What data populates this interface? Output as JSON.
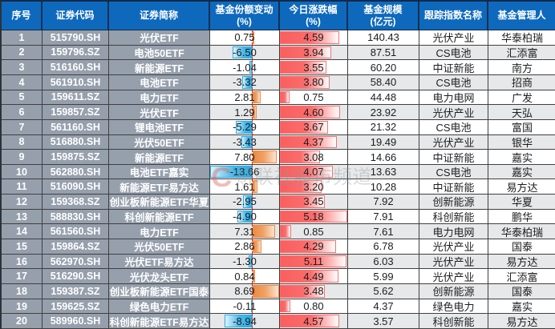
{
  "table_title": "",
  "chart_data": {
    "type": "table",
    "columns": [
      {
        "key": "index",
        "label": "序号",
        "unit": ""
      },
      {
        "key": "code",
        "label": "证券代码",
        "unit": ""
      },
      {
        "key": "name",
        "label": "证券简称",
        "unit": ""
      },
      {
        "key": "share_change",
        "label": "基金份额变动",
        "unit": "(%)"
      },
      {
        "key": "day_change",
        "label": "今日涨跌幅",
        "unit": "(%)"
      },
      {
        "key": "fund_size",
        "label": "基金规模",
        "unit": "(亿元)"
      },
      {
        "key": "index_name",
        "label": "跟踪指数名称",
        "unit": ""
      },
      {
        "key": "manager",
        "label": "基金管理人",
        "unit": ""
      }
    ],
    "rows": [
      {
        "index": "1",
        "code": "515790.SH",
        "name": "光伏ETF",
        "share_change": "0.75",
        "day_change": "4.59",
        "fund_size": "140.43",
        "index_name": "光伏产业",
        "manager": "华泰柏瑞"
      },
      {
        "index": "2",
        "code": "159796.SZ",
        "name": "电池50ETF",
        "share_change": "-6.50",
        "day_change": "3.94",
        "fund_size": "87.51",
        "index_name": "CS电池",
        "manager": "汇添富"
      },
      {
        "index": "3",
        "code": "516160.SH",
        "name": "新能源ETF",
        "share_change": "-1.04",
        "day_change": "3.55",
        "fund_size": "60.20",
        "index_name": "中证新能",
        "manager": "南方"
      },
      {
        "index": "4",
        "code": "561910.SH",
        "name": "电池ETF",
        "share_change": "-3.32",
        "day_change": "3.80",
        "fund_size": "58.40",
        "index_name": "CS电池",
        "manager": "招商"
      },
      {
        "index": "5",
        "code": "159611.SZ",
        "name": "电力ETF",
        "share_change": "2.81",
        "day_change": "0.75",
        "fund_size": "44.48",
        "index_name": "电力电网",
        "manager": "广发"
      },
      {
        "index": "6",
        "code": "159857.SZ",
        "name": "光伏ETF",
        "share_change": "1.29",
        "day_change": "4.60",
        "fund_size": "23.92",
        "index_name": "光伏产业",
        "manager": "天弘"
      },
      {
        "index": "7",
        "code": "561160.SH",
        "name": "锂电池ETF",
        "share_change": "-5.29",
        "day_change": "3.67",
        "fund_size": "21.32",
        "index_name": "CS电池",
        "manager": "富国"
      },
      {
        "index": "8",
        "code": "516880.SH",
        "name": "光伏50ETF",
        "share_change": "-3.43",
        "day_change": "4.37",
        "fund_size": "19.49",
        "index_name": "光伏产业",
        "manager": "银华"
      },
      {
        "index": "9",
        "code": "159875.SZ",
        "name": "新能源ETF",
        "share_change": "7.80",
        "day_change": "3.08",
        "fund_size": "14.66",
        "index_name": "中证新能",
        "manager": "嘉实"
      },
      {
        "index": "10",
        "code": "562880.SH",
        "name": "电池ETF嘉实",
        "share_change": "-13.66",
        "day_change": "4.07",
        "fund_size": "13.63",
        "index_name": "CS电池",
        "manager": "嘉实"
      },
      {
        "index": "11",
        "code": "516090.SH",
        "name": "新能源ETF易方达",
        "share_change": "1.61",
        "day_change": "3.20",
        "fund_size": "10.28",
        "index_name": "中证新能",
        "manager": "易方达"
      },
      {
        "index": "12",
        "code": "159368.SZ",
        "name": "创业板新能源ETF华夏",
        "share_change": "-2.95",
        "day_change": "3.45",
        "fund_size": "7.92",
        "index_name": "创新能源",
        "manager": "华夏"
      },
      {
        "index": "13",
        "code": "588830.SH",
        "name": "科创新能源ETF",
        "share_change": "-4.90",
        "day_change": "5.18",
        "fund_size": "7.91",
        "index_name": "科创新能",
        "manager": "鹏华"
      },
      {
        "index": "14",
        "code": "561560.SH",
        "name": "电力ETF",
        "share_change": "7.31",
        "day_change": "0.85",
        "fund_size": "7.61",
        "index_name": "电力电网",
        "manager": "华泰柏瑞"
      },
      {
        "index": "15",
        "code": "159864.SZ",
        "name": "光伏50ETF",
        "share_change": "2.86",
        "day_change": "4.29",
        "fund_size": "6.78",
        "index_name": "光伏产业",
        "manager": "国泰"
      },
      {
        "index": "16",
        "code": "562970.SH",
        "name": "光伏ETF易方达",
        "share_change": "-1.30",
        "day_change": "5.11",
        "fund_size": "6.03",
        "index_name": "光伏产业",
        "manager": "易方达"
      },
      {
        "index": "17",
        "code": "516290.SH",
        "name": "光伏龙头ETF",
        "share_change": "0.84",
        "day_change": "4.49",
        "fund_size": "5.99",
        "index_name": "光伏产业",
        "manager": "汇添富"
      },
      {
        "index": "18",
        "code": "159387.SZ",
        "name": "创业板新能源ETF国泰",
        "share_change": "8.69",
        "day_change": "3.48",
        "fund_size": "5.62",
        "index_name": "创新能源",
        "manager": "国泰"
      },
      {
        "index": "19",
        "code": "159625.SZ",
        "name": "绿色电力ETF",
        "share_change": "-0.11",
        "day_change": "0.80",
        "fund_size": "4.37",
        "index_name": "绿色电力",
        "manager": "嘉实"
      },
      {
        "index": "20",
        "code": "589960.SH",
        "name": "科创新能源ETF易方达",
        "share_change": "-8.94",
        "day_change": "4.57",
        "fund_size": "3.57",
        "index_name": "科创新能",
        "manager": "易方达"
      }
    ],
    "bars": {
      "share_change": {
        "min": -13.66,
        "max": 8.69,
        "negative_color": "#2fade5",
        "positive_color": "#ed8b43",
        "axis_color": "#e02b2b",
        "axis_style": "dashed"
      },
      "day_change": {
        "min": 0,
        "max": 5.18,
        "color": "#fa5f5f"
      }
    }
  },
  "watermark": {
    "logo": "C",
    "text": "财联社股市频道"
  },
  "colors": {
    "header_bg": "#0e69bd",
    "row_label_bg": "#96a0ac",
    "row_even_bg": "#e6e8ea",
    "row_odd_bg": "#ffffff",
    "gridline": "#404040",
    "header_gridline": "#142f52"
  }
}
